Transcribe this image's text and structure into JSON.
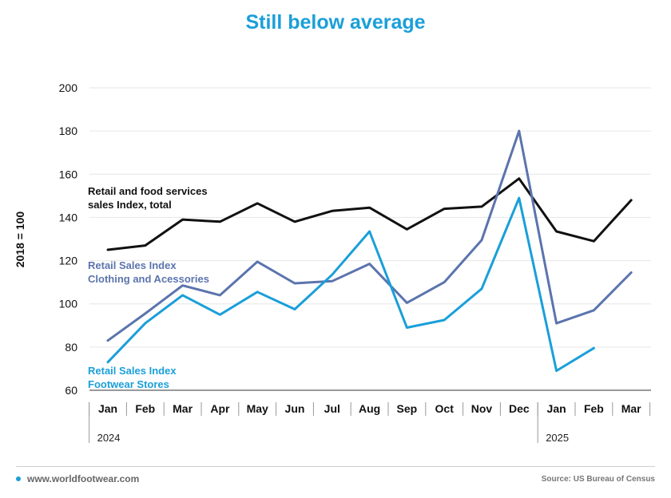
{
  "title": "Still below average",
  "footer": {
    "site": "www.worldfootwear.com",
    "source": "Source: US Bureau of Census"
  },
  "colors": {
    "title": "#1a9fd9",
    "total": "#111111",
    "clothing": "#5b74ad",
    "footwear": "#1a9fd9"
  },
  "chart_data": {
    "type": "line",
    "title": "Still below average",
    "ylabel": "2018 = 100",
    "xlabel": "",
    "ylim": [
      60,
      200
    ],
    "yticks": [
      60,
      80,
      100,
      120,
      140,
      160,
      180,
      200
    ],
    "grid": true,
    "categories": [
      "Jan",
      "Feb",
      "Mar",
      "Apr",
      "May",
      "Jun",
      "Jul",
      "Aug",
      "Sep",
      "Oct",
      "Nov",
      "Dec",
      "Jan",
      "Feb",
      "Mar"
    ],
    "year_groups": [
      {
        "label": "2024",
        "start": 0,
        "end": 11
      },
      {
        "label": "2025",
        "start": 12,
        "end": 14
      }
    ],
    "series": [
      {
        "key": "total",
        "name_lines": [
          "Retail and food services",
          "sales Index, total"
        ],
        "color": "#111111",
        "values": [
          125,
          127,
          139,
          138,
          146.5,
          138,
          143,
          144.5,
          134.5,
          144,
          145,
          158,
          133.5,
          129,
          148
        ]
      },
      {
        "key": "clothing",
        "name_lines": [
          "Retail Sales Index",
          "Clothing and Acessories"
        ],
        "color": "#5b74ad",
        "values": [
          83,
          95.5,
          108.5,
          104,
          119.5,
          109.5,
          110.5,
          118.5,
          100.5,
          110,
          129.5,
          180,
          91,
          97,
          114.5
        ]
      },
      {
        "key": "footwear",
        "name_lines": [
          "Retail Sales Index",
          "Footwear Stores"
        ],
        "color": "#1a9fd9",
        "values": [
          73,
          91,
          104,
          95,
          105.5,
          97.5,
          113.5,
          133.5,
          89,
          92.5,
          107,
          149,
          69,
          79.5,
          null
        ]
      }
    ]
  }
}
